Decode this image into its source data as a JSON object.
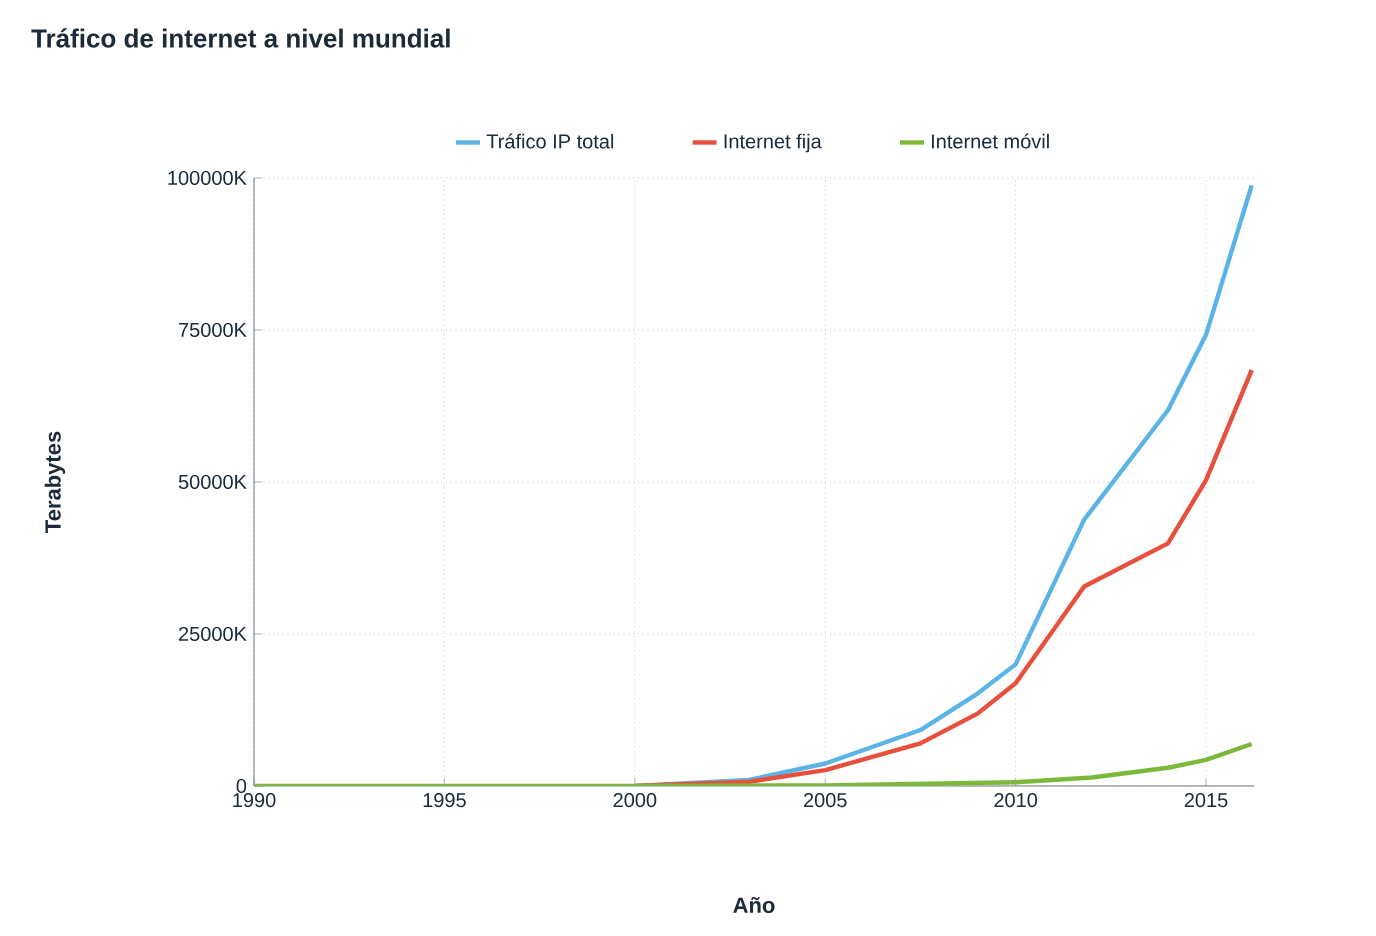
{
  "chart_data": {
    "type": "line",
    "title": "Tráfico de internet a nivel mundial",
    "xlabel": "Año",
    "ylabel": "Terabytes",
    "xlim": [
      1990,
      2016.26
    ],
    "xticks": [
      1990,
      1995,
      2000,
      2005,
      2010,
      2015
    ],
    "ylim": [
      0,
      100000
    ],
    "yticks": [
      {
        "value": 0,
        "label": "0"
      },
      {
        "value": 25000,
        "label": "25000K"
      },
      {
        "value": 50000,
        "label": "50000K"
      },
      {
        "value": 75000,
        "label": "75000K"
      },
      {
        "value": 100000,
        "label": "100000K"
      }
    ],
    "grid": true,
    "legend": "top",
    "series": [
      {
        "name": "Tráfico IP total",
        "color": "#5ab4e5",
        "x": [
          2000,
          2003,
          2005,
          2007.5,
          2009,
          2010,
          2011.8,
          2014,
          2015,
          2016.2
        ],
        "values": [
          0,
          1000,
          3700,
          9200,
          15200,
          20000,
          43800,
          61800,
          74200,
          98800
        ]
      },
      {
        "name": "Internet fija",
        "color": "#e8503e",
        "x": [
          2000,
          2003,
          2005,
          2007.5,
          2009,
          2010,
          2011.8,
          2014,
          2015,
          2016.2
        ],
        "values": [
          0,
          700,
          2600,
          7000,
          11900,
          16900,
          32800,
          39900,
          50300,
          68400
        ]
      },
      {
        "name": "Internet móvil",
        "color": "#7cb83a",
        "x": [
          1990,
          1995,
          2000,
          2005,
          2010,
          2012,
          2014,
          2015,
          2016.2
        ],
        "values": [
          0,
          0,
          0,
          100,
          600,
          1400,
          3000,
          4300,
          6900
        ]
      }
    ]
  }
}
